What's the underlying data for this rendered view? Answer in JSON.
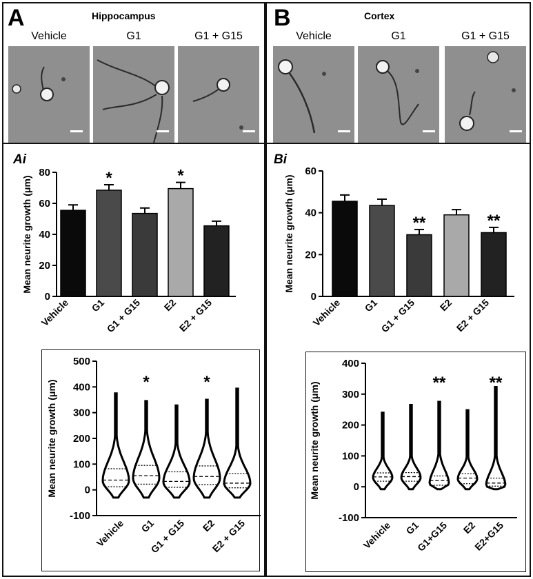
{
  "panels": {
    "a": {
      "letter": "A",
      "title": "Hippocampus",
      "sub": "Ai"
    },
    "b": {
      "letter": "B",
      "title": "Cortex",
      "sub": "Bi"
    }
  },
  "micrographs": {
    "hippocampus": [
      "Vehicle",
      "G1",
      "G1 + G15"
    ],
    "cortex": [
      "Vehicle",
      "G1",
      "G1 + G15"
    ]
  },
  "chart_data": [
    {
      "id": "hippocampus-bar",
      "type": "bar",
      "categories": [
        "Vehicle",
        "G1",
        "G1 + G15",
        "E2",
        "E2 + G15"
      ],
      "values": [
        55.5,
        68.5,
        53.5,
        69.5,
        45.5
      ],
      "errors": [
        3.5,
        3.5,
        3.5,
        4,
        3
      ],
      "significance": [
        "",
        "*",
        "",
        "*",
        ""
      ],
      "colors": [
        "#0a0a0a",
        "#4a4a4a",
        "#3a3a3a",
        "#a9a9a9",
        "#222222"
      ],
      "ylabel": "Mean neurite growth (μm)",
      "ylim": [
        0,
        80
      ],
      "yticks": [
        0,
        20,
        40,
        60,
        80
      ]
    },
    {
      "id": "cortex-bar",
      "type": "bar",
      "categories": [
        "Vehicle",
        "G1",
        "G1 + G15",
        "E2",
        "E2 + G15"
      ],
      "values": [
        45.5,
        43.5,
        29.5,
        39,
        30.5
      ],
      "errors": [
        3,
        3,
        2.5,
        2.5,
        2.5
      ],
      "significance": [
        "",
        "",
        "**",
        "",
        "**"
      ],
      "colors": [
        "#0a0a0a",
        "#4a4a4a",
        "#3a3a3a",
        "#a9a9a9",
        "#222222"
      ],
      "ylabel": "Mean neurite growth (μm)",
      "ylim": [
        0,
        60
      ],
      "yticks": [
        0,
        20,
        40,
        60
      ]
    },
    {
      "id": "hippocampus-violin",
      "type": "violin",
      "categories": [
        "Vehicle",
        "G1",
        "G1 + G15",
        "E2",
        "E2 + G15"
      ],
      "min": [
        -30,
        -30,
        -30,
        -30,
        -30
      ],
      "max": [
        375,
        345,
        328,
        350,
        393
      ],
      "q1": [
        12,
        22,
        10,
        20,
        8
      ],
      "median": [
        38,
        55,
        33,
        52,
        26
      ],
      "q3": [
        82,
        95,
        70,
        93,
        63
      ],
      "mode": [
        35,
        45,
        30,
        45,
        25
      ],
      "significance": [
        "",
        "*",
        "",
        "*",
        ""
      ],
      "ylabel": "Mean neurite growth (μm)",
      "ylim": [
        -100,
        500
      ],
      "yticks": [
        -100,
        0,
        100,
        200,
        300,
        400,
        500
      ]
    },
    {
      "id": "cortex-violin",
      "type": "violin",
      "categories": [
        "Vehicle",
        "G1",
        "G1+G15",
        "E2",
        "E2+G15"
      ],
      "min": [
        -8,
        -8,
        -8,
        -8,
        -8
      ],
      "max": [
        240,
        265,
        275,
        248,
        323
      ],
      "q1": [
        18,
        18,
        5,
        10,
        2
      ],
      "median": [
        32,
        33,
        20,
        28,
        12
      ],
      "q3": [
        45,
        46,
        35,
        42,
        28
      ],
      "mode": [
        30,
        30,
        10,
        25,
        3
      ],
      "significance": [
        "",
        "",
        "**",
        "",
        "**"
      ],
      "ylabel": "Mean neurite growth (μm)",
      "ylim": [
        -100,
        400
      ],
      "yticks": [
        -100,
        0,
        100,
        200,
        300,
        400
      ]
    }
  ]
}
